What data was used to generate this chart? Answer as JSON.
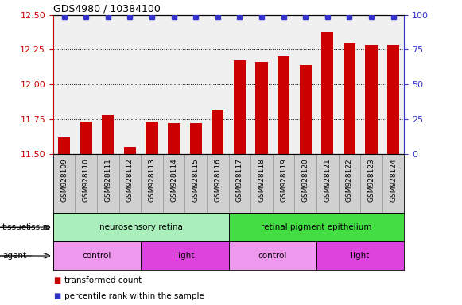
{
  "title": "GDS4980 / 10384100",
  "samples": [
    "GSM928109",
    "GSM928110",
    "GSM928111",
    "GSM928112",
    "GSM928113",
    "GSM928114",
    "GSM928115",
    "GSM928116",
    "GSM928117",
    "GSM928118",
    "GSM928119",
    "GSM928120",
    "GSM928121",
    "GSM928122",
    "GSM928123",
    "GSM928124"
  ],
  "bar_values": [
    11.62,
    11.73,
    11.78,
    11.55,
    11.73,
    11.72,
    11.72,
    11.82,
    12.17,
    12.16,
    12.2,
    12.14,
    12.38,
    12.3,
    12.28,
    12.28
  ],
  "bar_color": "#cc0000",
  "percentile_color": "#3333cc",
  "ylim_left": [
    11.5,
    12.5
  ],
  "ylim_right": [
    0,
    100
  ],
  "yticks_left": [
    11.5,
    11.75,
    12.0,
    12.25,
    12.5
  ],
  "yticks_right": [
    0,
    25,
    50,
    75,
    100
  ],
  "bar_width": 0.55,
  "tissue_groups": [
    {
      "label": "neurosensory retina",
      "start": 0,
      "end": 7,
      "color": "#aaeebb"
    },
    {
      "label": "retinal pigment epithelium",
      "start": 8,
      "end": 15,
      "color": "#44dd44"
    }
  ],
  "agent_groups": [
    {
      "label": "control",
      "start": 0,
      "end": 3,
      "color": "#ee99ee"
    },
    {
      "label": "light",
      "start": 4,
      "end": 7,
      "color": "#dd44dd"
    },
    {
      "label": "control",
      "start": 8,
      "end": 11,
      "color": "#ee99ee"
    },
    {
      "label": "light",
      "start": 12,
      "end": 15,
      "color": "#dd44dd"
    }
  ],
  "legend_items": [
    {
      "label": "transformed count",
      "color": "#cc0000"
    },
    {
      "label": "percentile rank within the sample",
      "color": "#3333cc"
    }
  ],
  "background_color": "#ffffff",
  "plot_bg_color": "#f0f0f0",
  "xlabel_row_bg": "#d0d0d0"
}
